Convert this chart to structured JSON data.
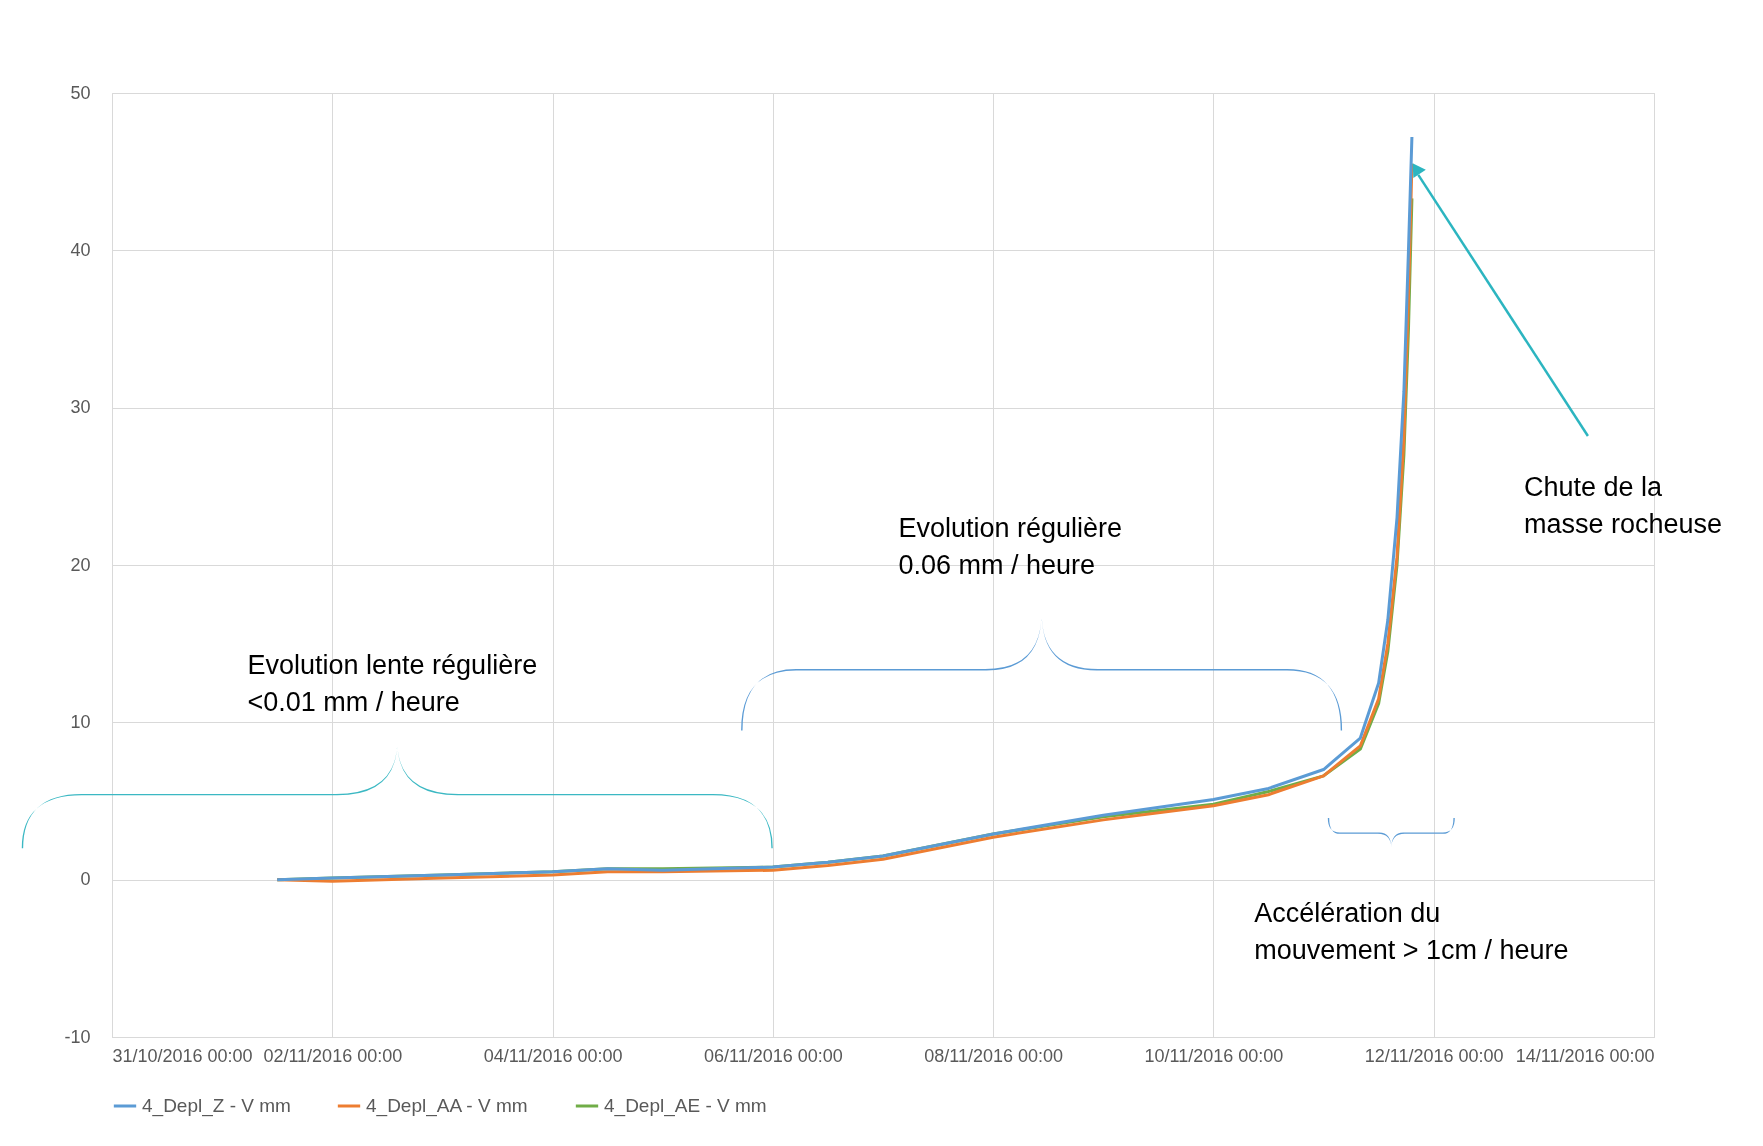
{
  "chart_data": {
    "type": "line",
    "x": [
      "2016-11-01T12:00",
      "2016-11-02T00:00",
      "2016-11-03T00:00",
      "2016-11-04T00:00",
      "2016-11-04T12:00",
      "2016-11-05T00:00",
      "2016-11-06T00:00",
      "2016-11-06T12:00",
      "2016-11-07T00:00",
      "2016-11-08T00:00",
      "2016-11-09T00:00",
      "2016-11-10T00:00",
      "2016-11-10T12:00",
      "2016-11-11T00:00",
      "2016-11-11T08:00",
      "2016-11-11T12:00",
      "2016-11-11T14:00",
      "2016-11-11T16:00",
      "2016-11-11T17:30",
      "2016-11-11T18:30",
      "2016-11-11T19:15"
    ],
    "series": [
      {
        "name": "4_Depl_Z - V mm",
        "color": "#5b9bd5",
        "values": [
          0,
          0.1,
          0.3,
          0.5,
          0.7,
          0.6,
          0.8,
          1.1,
          1.5,
          2.9,
          4.1,
          5.1,
          5.8,
          7.0,
          9.0,
          12.5,
          16.5,
          23,
          31,
          40,
          47.2
        ]
      },
      {
        "name": "4_Depl_AA - V mm",
        "color": "#ed7d31",
        "values": [
          0,
          -0.1,
          0.1,
          0.3,
          0.5,
          0.5,
          0.6,
          0.9,
          1.3,
          2.7,
          3.8,
          4.7,
          5.4,
          6.6,
          8.5,
          11.5,
          15,
          20.5,
          28,
          37,
          45.5
        ]
      },
      {
        "name": "4_Depl_AE - V mm",
        "color": "#70ad47",
        "values": [
          0,
          0.1,
          0.3,
          0.5,
          0.7,
          0.7,
          0.8,
          1.1,
          1.5,
          2.9,
          4.0,
          4.8,
          5.6,
          6.6,
          8.3,
          11.2,
          14.5,
          20,
          27,
          35,
          43.3
        ]
      }
    ],
    "xlim": [
      "2016-10-31T00:00",
      "2016-11-14T00:00"
    ],
    "xticks": [
      {
        "value": "2016-10-31T00:00",
        "label": "31/10/2016 00:00"
      },
      {
        "value": "2016-11-02T00:00",
        "label": "02/11/2016 00:00"
      },
      {
        "value": "2016-11-04T00:00",
        "label": "04/11/2016 00:00"
      },
      {
        "value": "2016-11-06T00:00",
        "label": "06/11/2016 00:00"
      },
      {
        "value": "2016-11-08T00:00",
        "label": "08/11/2016 00:00"
      },
      {
        "value": "2016-11-10T00:00",
        "label": "10/11/2016 00:00"
      },
      {
        "value": "2016-11-12T00:00",
        "label": "12/11/2016 00:00"
      },
      {
        "value": "2016-11-14T00:00",
        "label": "14/11/2016 00:00"
      }
    ],
    "ylim": [
      -10,
      50
    ],
    "yticks": [
      -10,
      0,
      10,
      20,
      30,
      40,
      50
    ],
    "grid": true,
    "legend": "bottom",
    "marker": "none",
    "line_style": "solid",
    "annotations": [
      "Evolution lente régulière\n<0.01 mm / heure",
      "Evolution régulière\n0.06 mm / heure",
      "Chute de la\nmasse rocheuse",
      "Accélération du\nmouvement > 1cm / heure"
    ]
  }
}
